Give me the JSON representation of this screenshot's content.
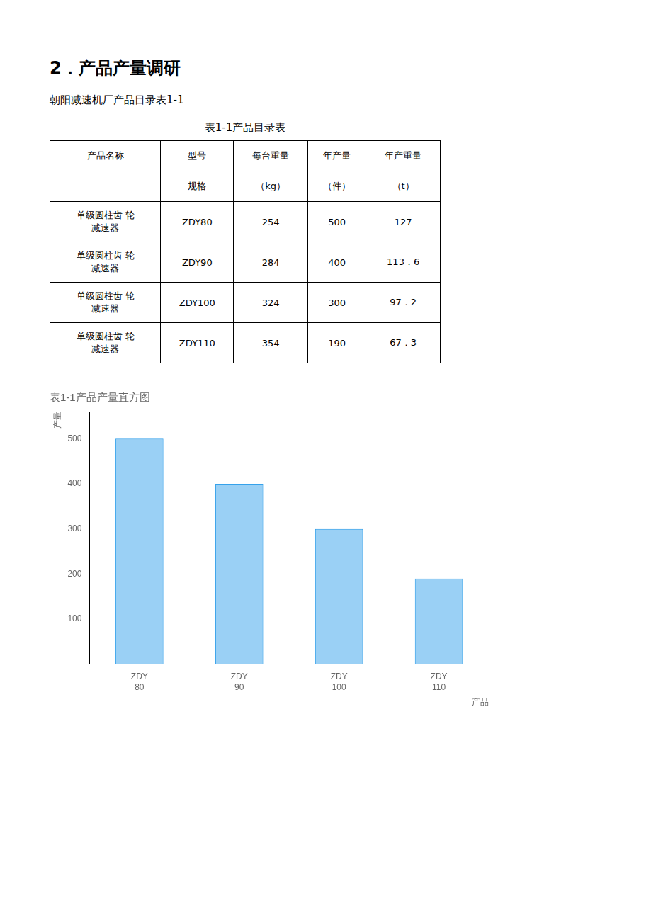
{
  "page_title": "2．产品产量调研",
  "subtitle": "朝阳减速机厂产品目录表1-1",
  "table": {
    "title": "表1-1产品目录表",
    "header_rows": [
      [
        "产品名称",
        "型号",
        "每台重量",
        "年产量",
        "年产重量"
      ],
      [
        null,
        "规格",
        "（kg）",
        "（件）",
        "（t）"
      ]
    ],
    "rows": [
      [
        "单级圆柱齿 轮\n减速器",
        "ZDY80",
        "254",
        "500",
        "127"
      ],
      [
        "单级圆柱齿 轮\n减速器",
        "ZDY90",
        "284",
        "400",
        "113．6"
      ],
      [
        "单级圆柱齿 轮\n减速器",
        "ZDY100",
        "324",
        "300",
        "97．2"
      ],
      [
        "单级圆柱齿 轮\n减速器",
        "ZDY110",
        "354",
        "190",
        "67．3"
      ]
    ]
  },
  "chart_data": {
    "type": "bar",
    "title": "表1-1产品产量直方图",
    "x_label": "产品",
    "y_label": "产量",
    "categories": [
      "ZDY\n80",
      "ZDY\n90",
      "ZDY\n100",
      "ZDY\n110"
    ],
    "values": [
      500,
      400,
      300,
      190
    ],
    "ylim": [
      0,
      560
    ],
    "yticks": [
      100,
      200,
      300,
      400,
      500
    ],
    "grid": false
  }
}
